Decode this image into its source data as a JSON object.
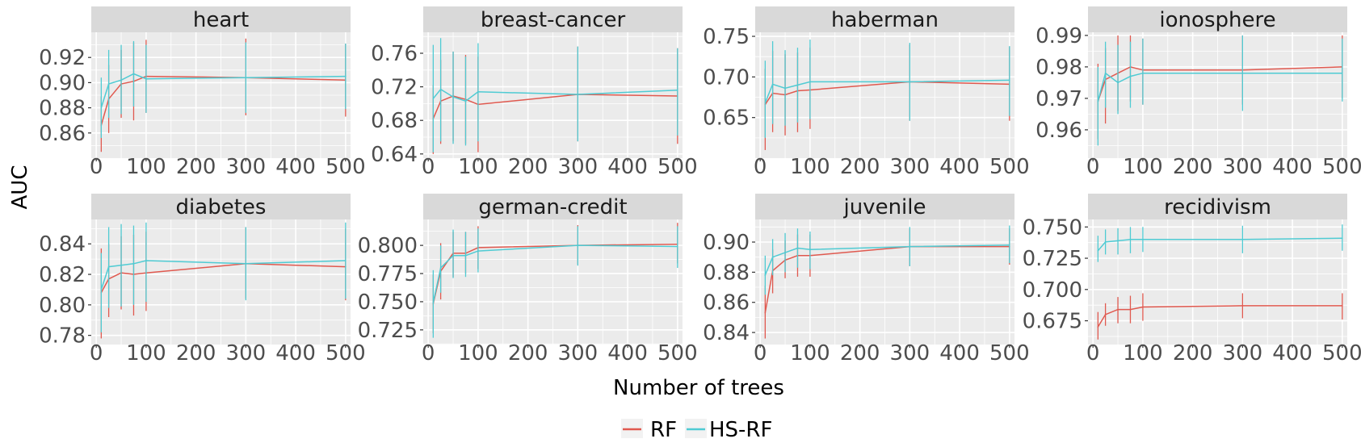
{
  "figure": {
    "ylabel": "AUC",
    "xlabel": "Number of trees",
    "legend": {
      "position": "bottom",
      "entries": [
        {
          "name": "RF",
          "color": "#E0594F"
        },
        {
          "name": "HS-RF",
          "color": "#4FCBD3"
        }
      ]
    }
  },
  "chart_data": [
    {
      "type": "line",
      "title": "heart",
      "x": [
        10,
        25,
        50,
        75,
        100,
        300,
        500
      ],
      "xlim": [
        -10,
        510
      ],
      "xticks": [
        0,
        100,
        200,
        300,
        400,
        500
      ],
      "ylim": [
        0.84,
        0.94
      ],
      "yticks": [
        0.86,
        0.88,
        0.9,
        0.92
      ],
      "ytick_labels": [
        "0.86",
        "0.88",
        "0.90",
        "0.92"
      ],
      "series": [
        {
          "name": "RF",
          "values": [
            0.866,
            0.887,
            0.899,
            0.901,
            0.905,
            0.904,
            0.902
          ],
          "low": [
            0.845,
            0.86,
            0.872,
            0.87,
            0.876,
            0.874,
            0.873
          ],
          "high": [
            0.889,
            0.914,
            0.926,
            0.932,
            0.934,
            0.935,
            0.931
          ]
        },
        {
          "name": "HS-RF",
          "values": [
            0.88,
            0.899,
            0.902,
            0.907,
            0.903,
            0.904,
            0.905
          ],
          "low": [
            0.856,
            0.872,
            0.875,
            0.881,
            0.876,
            0.876,
            0.879
          ],
          "high": [
            0.904,
            0.926,
            0.93,
            0.933,
            0.93,
            0.932,
            0.931
          ]
        }
      ]
    },
    {
      "type": "line",
      "title": "breast-cancer",
      "x": [
        10,
        25,
        50,
        75,
        100,
        300,
        500
      ],
      "xlim": [
        -10,
        510
      ],
      "xticks": [
        0,
        100,
        200,
        300,
        400,
        500
      ],
      "ylim": [
        0.635,
        0.785
      ],
      "yticks": [
        0.64,
        0.68,
        0.72,
        0.76
      ],
      "ytick_labels": [
        "0.64",
        "0.68",
        "0.72",
        "0.76"
      ],
      "series": [
        {
          "name": "RF",
          "values": [
            0.682,
            0.703,
            0.709,
            0.705,
            0.699,
            0.711,
            0.709
          ],
          "low": [
            0.64,
            0.652,
            0.655,
            0.652,
            0.642,
            0.655,
            0.652
          ],
          "high": [
            0.722,
            0.752,
            0.762,
            0.758,
            0.756,
            0.768,
            0.766
          ]
        },
        {
          "name": "HS-RF",
          "values": [
            0.706,
            0.717,
            0.708,
            0.703,
            0.714,
            0.711,
            0.716
          ],
          "low": [
            0.642,
            0.655,
            0.652,
            0.65,
            0.655,
            0.655,
            0.662
          ],
          "high": [
            0.77,
            0.778,
            0.762,
            0.756,
            0.772,
            0.768,
            0.766
          ]
        }
      ]
    },
    {
      "type": "line",
      "title": "haberman",
      "x": [
        10,
        25,
        50,
        75,
        100,
        300,
        500
      ],
      "xlim": [
        -10,
        510
      ],
      "xticks": [
        0,
        100,
        200,
        300,
        400,
        500
      ],
      "ylim": [
        0.6,
        0.755
      ],
      "yticks": [
        0.65,
        0.7,
        0.75
      ],
      "ytick_labels": [
        "0.65",
        "0.70",
        "0.75"
      ],
      "series": [
        {
          "name": "RF",
          "values": [
            0.666,
            0.68,
            0.678,
            0.683,
            0.684,
            0.694,
            0.691
          ],
          "low": [
            0.61,
            0.632,
            0.628,
            0.632,
            0.636,
            0.646,
            0.646
          ],
          "high": [
            0.71,
            0.732,
            0.728,
            0.73,
            0.736,
            0.74,
            0.737
          ]
        },
        {
          "name": "HS-RF",
          "values": [
            0.668,
            0.691,
            0.686,
            0.69,
            0.694,
            0.694,
            0.696
          ],
          "low": [
            0.625,
            0.642,
            0.64,
            0.644,
            0.648,
            0.646,
            0.652
          ],
          "high": [
            0.72,
            0.744,
            0.733,
            0.736,
            0.746,
            0.742,
            0.738
          ]
        }
      ]
    },
    {
      "type": "line",
      "title": "ionosphere",
      "x": [
        10,
        25,
        50,
        75,
        100,
        300,
        500
      ],
      "xlim": [
        -10,
        510
      ],
      "xticks": [
        0,
        100,
        200,
        300,
        400,
        500
      ],
      "ylim": [
        0.951,
        0.991
      ],
      "yticks": [
        0.96,
        0.97,
        0.98,
        0.99
      ],
      "ytick_labels": [
        "0.96",
        "0.97",
        "0.98",
        "0.99"
      ],
      "series": [
        {
          "name": "RF",
          "values": [
            0.969,
            0.976,
            0.978,
            0.98,
            0.979,
            0.979,
            0.98
          ],
          "low": [
            0.957,
            0.962,
            0.966,
            0.969,
            0.968,
            0.968,
            0.97
          ],
          "high": [
            0.981,
            0.986,
            0.99,
            0.99,
            0.989,
            0.99,
            0.99
          ]
        },
        {
          "name": "HS-RF",
          "values": [
            0.969,
            0.978,
            0.975,
            0.977,
            0.978,
            0.978,
            0.978
          ],
          "low": [
            0.955,
            0.967,
            0.965,
            0.967,
            0.968,
            0.966,
            0.969
          ],
          "high": [
            0.98,
            0.988,
            0.987,
            0.988,
            0.989,
            0.99,
            0.989
          ]
        }
      ]
    },
    {
      "type": "line",
      "title": "diabetes",
      "x": [
        10,
        25,
        50,
        75,
        100,
        300,
        500
      ],
      "xlim": [
        -10,
        510
      ],
      "xticks": [
        0,
        100,
        200,
        300,
        400,
        500
      ],
      "ylim": [
        0.774,
        0.856
      ],
      "yticks": [
        0.78,
        0.8,
        0.82,
        0.84
      ],
      "ytick_labels": [
        "0.78",
        "0.80",
        "0.82",
        "0.84"
      ],
      "series": [
        {
          "name": "RF",
          "values": [
            0.808,
            0.817,
            0.821,
            0.82,
            0.821,
            0.827,
            0.825
          ],
          "low": [
            0.778,
            0.792,
            0.797,
            0.793,
            0.796,
            0.804,
            0.803
          ],
          "high": [
            0.837,
            0.84,
            0.845,
            0.846,
            0.848,
            0.851,
            0.85
          ]
        },
        {
          "name": "HS-RF",
          "values": [
            0.81,
            0.825,
            0.826,
            0.827,
            0.829,
            0.827,
            0.829
          ],
          "low": [
            0.782,
            0.798,
            0.799,
            0.8,
            0.802,
            0.803,
            0.804
          ],
          "high": [
            0.834,
            0.851,
            0.853,
            0.852,
            0.854,
            0.851,
            0.854
          ]
        }
      ]
    },
    {
      "type": "line",
      "title": "german-credit",
      "x": [
        10,
        25,
        50,
        75,
        100,
        300,
        500
      ],
      "xlim": [
        -10,
        510
      ],
      "xticks": [
        0,
        100,
        200,
        300,
        400,
        500
      ],
      "ylim": [
        0.712,
        0.823
      ],
      "yticks": [
        0.725,
        0.75,
        0.775,
        0.8
      ],
      "ytick_labels": [
        "0.725",
        "0.750",
        "0.775",
        "0.800"
      ],
      "series": [
        {
          "name": "RF",
          "values": [
            0.748,
            0.777,
            0.793,
            0.793,
            0.798,
            0.8,
            0.801
          ],
          "low": [
            0.722,
            0.752,
            0.772,
            0.775,
            0.779,
            0.783,
            0.784
          ],
          "high": [
            0.774,
            0.802,
            0.812,
            0.812,
            0.817,
            0.818,
            0.82
          ]
        },
        {
          "name": "HS-RF",
          "values": [
            0.749,
            0.78,
            0.791,
            0.791,
            0.795,
            0.8,
            0.799
          ],
          "low": [
            0.718,
            0.758,
            0.771,
            0.772,
            0.776,
            0.782,
            0.78
          ],
          "high": [
            0.778,
            0.8,
            0.814,
            0.812,
            0.815,
            0.817,
            0.817
          ]
        }
      ]
    },
    {
      "type": "line",
      "title": "juvenile",
      "x": [
        10,
        25,
        50,
        75,
        100,
        300,
        500
      ],
      "xlim": [
        -10,
        510
      ],
      "xticks": [
        0,
        100,
        200,
        300,
        400,
        500
      ],
      "ylim": [
        0.832,
        0.915
      ],
      "yticks": [
        0.84,
        0.86,
        0.88,
        0.9
      ],
      "ytick_labels": [
        "0.84",
        "0.86",
        "0.88",
        "0.90"
      ],
      "series": [
        {
          "name": "RF",
          "values": [
            0.853,
            0.881,
            0.888,
            0.891,
            0.891,
            0.897,
            0.897
          ],
          "low": [
            0.836,
            0.866,
            0.876,
            0.877,
            0.877,
            0.884,
            0.885
          ],
          "high": [
            0.871,
            0.895,
            0.901,
            0.905,
            0.905,
            0.909,
            0.909
          ]
        },
        {
          "name": "HS-RF",
          "values": [
            0.878,
            0.89,
            0.893,
            0.896,
            0.895,
            0.897,
            0.898
          ],
          "low": [
            0.865,
            0.878,
            0.88,
            0.883,
            0.882,
            0.884,
            0.886
          ],
          "high": [
            0.891,
            0.902,
            0.906,
            0.909,
            0.907,
            0.91,
            0.911
          ]
        }
      ]
    },
    {
      "type": "line",
      "title": "recidivism",
      "x": [
        10,
        25,
        50,
        75,
        100,
        300,
        500
      ],
      "xlim": [
        -10,
        510
      ],
      "xticks": [
        0,
        100,
        200,
        300,
        400,
        500
      ],
      "ylim": [
        0.656,
        0.756
      ],
      "yticks": [
        0.675,
        0.7,
        0.725,
        0.75
      ],
      "ytick_labels": [
        "0.675",
        "0.700",
        "0.725",
        "0.750"
      ],
      "series": [
        {
          "name": "RF",
          "values": [
            0.67,
            0.68,
            0.684,
            0.684,
            0.686,
            0.687,
            0.687
          ],
          "low": [
            0.66,
            0.671,
            0.673,
            0.673,
            0.675,
            0.677,
            0.676
          ],
          "high": [
            0.682,
            0.689,
            0.694,
            0.695,
            0.697,
            0.697,
            0.697
          ]
        },
        {
          "name": "HS-RF",
          "values": [
            0.731,
            0.738,
            0.739,
            0.74,
            0.74,
            0.74,
            0.741
          ],
          "low": [
            0.722,
            0.728,
            0.728,
            0.729,
            0.73,
            0.729,
            0.731
          ],
          "high": [
            0.743,
            0.748,
            0.749,
            0.75,
            0.75,
            0.751,
            0.752
          ]
        }
      ]
    }
  ]
}
